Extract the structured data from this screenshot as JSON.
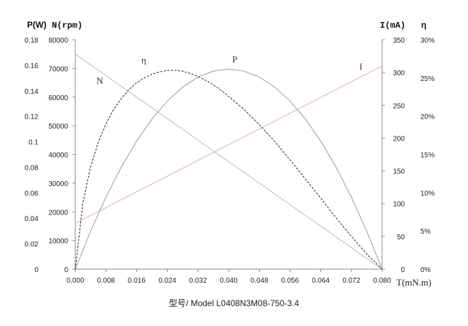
{
  "chart_data": {
    "type": "line",
    "x": {
      "label": "T(mN.m)",
      "ticks": [
        "0.000",
        "0.008",
        "0.016",
        "0.024",
        "0.032",
        "0.040",
        "0.048",
        "0.056",
        "0.064",
        "0.072",
        "0.080"
      ],
      "range": [
        0,
        0.08
      ]
    },
    "axes": {
      "power": {
        "label": "P(W)",
        "ticks": [
          "0",
          "0.02",
          "0.04",
          "0.06",
          "0.08",
          "0.1",
          "0.12",
          "0.14",
          "0.16",
          "0.18"
        ],
        "range": [
          0,
          0.18
        ]
      },
      "speed": {
        "label": "N(rpm)",
        "ticks": [
          "0",
          "10000",
          "20000",
          "30000",
          "40000",
          "50000",
          "60000",
          "70000",
          "80000"
        ],
        "range": [
          0,
          80000
        ]
      },
      "current": {
        "label": "I(mA)",
        "ticks": [
          "0",
          "50",
          "100",
          "150",
          "200",
          "250",
          "300",
          "350"
        ],
        "range": [
          0,
          350
        ]
      },
      "efficiency": {
        "label": "η",
        "ticks": [
          "0%",
          "5%",
          "10%",
          "15%",
          "20%",
          "25%",
          "30%"
        ],
        "range": [
          0,
          30
        ]
      }
    },
    "series": [
      {
        "name": "N",
        "axis": "speed",
        "color": "#a9bfd4",
        "style": "solid",
        "x": [
          0,
          0.08
        ],
        "y": [
          75000,
          0
        ]
      },
      {
        "name": "I",
        "axis": "current",
        "color": "#e6a9b2",
        "style": "solid",
        "x": [
          0,
          0.08
        ],
        "y": [
          70,
          310
        ]
      },
      {
        "name": "P",
        "axis": "power",
        "color": "#9a9a9a",
        "style": "solid",
        "x": [
          0,
          0.004,
          0.008,
          0.012,
          0.016,
          0.02,
          0.024,
          0.028,
          0.032,
          0.036,
          0.04,
          0.044,
          0.048,
          0.052,
          0.056,
          0.06,
          0.064,
          0.068,
          0.072,
          0.076,
          0.08
        ],
        "y": [
          0,
          0.0298,
          0.0565,
          0.0801,
          0.1005,
          0.1178,
          0.1319,
          0.1429,
          0.1507,
          0.1554,
          0.157,
          0.1554,
          0.1507,
          0.1429,
          0.1319,
          0.1178,
          0.1005,
          0.0801,
          0.0565,
          0.0298,
          0
        ]
      },
      {
        "name": "η",
        "axis": "efficiency",
        "color": "#222222",
        "style": "dashed",
        "x": [
          0,
          0.002,
          0.004,
          0.006,
          0.008,
          0.01,
          0.012,
          0.014,
          0.016,
          0.018,
          0.02,
          0.022,
          0.024,
          0.026,
          0.028,
          0.03,
          0.032,
          0.034,
          0.036,
          0.038,
          0.04,
          0.044,
          0.048,
          0.052,
          0.056,
          0.06,
          0.064,
          0.068,
          0.072,
          0.076,
          0.08
        ],
        "y": [
          0,
          8.7,
          13.4,
          16.6,
          19.0,
          20.9,
          22.3,
          23.5,
          24.4,
          25.0,
          25.5,
          25.8,
          26.0,
          26.0,
          25.9,
          25.6,
          25.2,
          24.7,
          24.1,
          23.4,
          22.6,
          20.9,
          18.9,
          16.7,
          14.3,
          11.8,
          9.3,
          6.7,
          4.3,
          2.0,
          0
        ]
      }
    ]
  },
  "caption": "型号/ Model   L0408N3M08-750-3.4"
}
